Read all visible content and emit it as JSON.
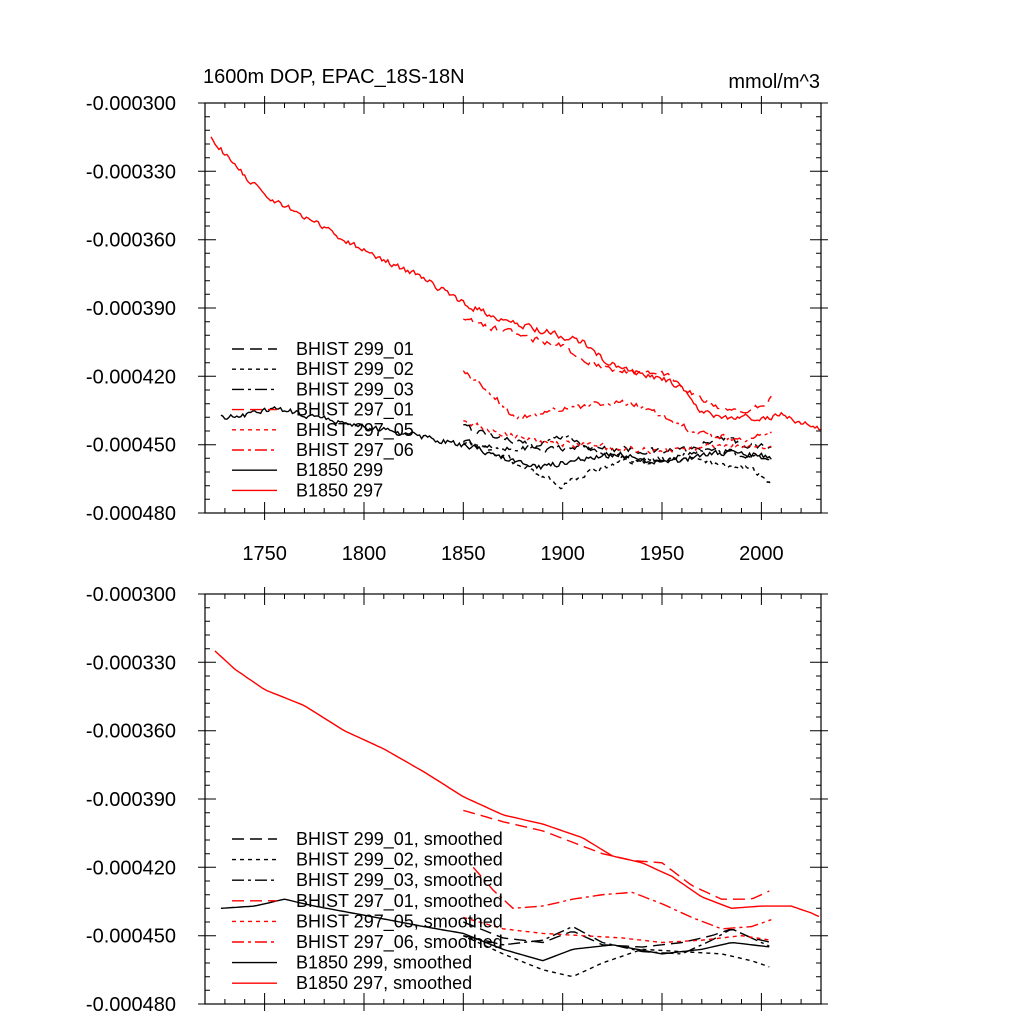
{
  "chart_data": [
    {
      "type": "line",
      "panel": "top",
      "title": "1600m DOP, EPAC_18S-18N",
      "units": "mmol/m^3",
      "xlim": [
        1720,
        2030
      ],
      "ylim": [
        -0.00048,
        -0.0003
      ],
      "xticks": [
        1750,
        1800,
        1850,
        1900,
        1950,
        2000
      ],
      "xtick_labels": [
        "1750",
        "1800",
        "1850",
        "1900",
        "1950",
        "2000"
      ],
      "yticks": [
        -0.0003,
        -0.00033,
        -0.00036,
        -0.00039,
        -0.00042,
        -0.00045,
        -0.00048
      ],
      "ytick_labels": [
        "-0.000300",
        "-0.000330",
        "-0.000360",
        "-0.000390",
        "-0.000420",
        "-0.000450",
        "-0.000480"
      ],
      "legend_position": "left-center",
      "series": [
        {
          "name": "BHIST 299_01",
          "color": "#000000",
          "dash": "dashed",
          "noise": 1.2e-06,
          "points": [
            [
              1850,
              -0.000442
            ],
            [
              1870,
              -0.000447
            ],
            [
              1890,
              -0.000452
            ],
            [
              1910,
              -0.000451
            ],
            [
              1930,
              -0.000452
            ],
            [
              1950,
              -0.000453
            ],
            [
              1965,
              -0.000452
            ],
            [
              1975,
              -0.000449
            ],
            [
              1980,
              -0.000446
            ],
            [
              1990,
              -0.00045
            ],
            [
              2005,
              -0.000451
            ]
          ]
        },
        {
          "name": "BHIST 299_02",
          "color": "#000000",
          "dash": "dotted",
          "noise": 1.2e-06,
          "points": [
            [
              1850,
              -0.000448
            ],
            [
              1870,
              -0.000455
            ],
            [
              1890,
              -0.000464
            ],
            [
              1900,
              -0.000468
            ],
            [
              1910,
              -0.000463
            ],
            [
              1930,
              -0.000458
            ],
            [
              1950,
              -0.000456
            ],
            [
              1970,
              -0.000457
            ],
            [
              1985,
              -0.000459
            ],
            [
              1995,
              -0.000461
            ],
            [
              2005,
              -0.000467
            ]
          ]
        },
        {
          "name": "BHIST 299_03",
          "color": "#000000",
          "dash": "dashdot",
          "noise": 1.2e-06,
          "points": [
            [
              1850,
              -0.000448
            ],
            [
              1870,
              -0.000452
            ],
            [
              1885,
              -0.000451
            ],
            [
              1900,
              -0.000446
            ],
            [
              1915,
              -0.000452
            ],
            [
              1930,
              -0.000456
            ],
            [
              1950,
              -0.000458
            ],
            [
              1970,
              -0.000452
            ],
            [
              1985,
              -0.000453
            ],
            [
              2005,
              -0.000458
            ]
          ]
        },
        {
          "name": "BHIST 297_01",
          "color": "#ff0000",
          "dash": "dashed",
          "noise": 1.2e-06,
          "points": [
            [
              1850,
              -0.000395
            ],
            [
              1870,
              -0.0004
            ],
            [
              1890,
              -0.000405
            ],
            [
              1900,
              -0.000407
            ],
            [
              1915,
              -0.000414
            ],
            [
              1930,
              -0.000418
            ],
            [
              1950,
              -0.000418
            ],
            [
              1965,
              -0.000428
            ],
            [
              1980,
              -0.000434
            ],
            [
              1990,
              -0.000435
            ],
            [
              2000,
              -0.000433
            ],
            [
              2005,
              -0.00043
            ]
          ]
        },
        {
          "name": "BHIST 297_05",
          "color": "#ff0000",
          "dash": "dotted",
          "noise": 1.2e-06,
          "points": [
            [
              1850,
              -0.00044
            ],
            [
              1870,
              -0.000445
            ],
            [
              1890,
              -0.000449
            ],
            [
              1910,
              -0.00045
            ],
            [
              1930,
              -0.000452
            ],
            [
              1950,
              -0.000453
            ],
            [
              1970,
              -0.000451
            ],
            [
              1985,
              -0.00045
            ],
            [
              2005,
              -0.000452
            ]
          ]
        },
        {
          "name": "BHIST 297_06",
          "color": "#ff0000",
          "dash": "dashdot",
          "noise": 1.2e-06,
          "points": [
            [
              1850,
              -0.000418
            ],
            [
              1865,
              -0.000428
            ],
            [
              1875,
              -0.000438
            ],
            [
              1885,
              -0.000437
            ],
            [
              1900,
              -0.000434
            ],
            [
              1920,
              -0.000432
            ],
            [
              1935,
              -0.000432
            ],
            [
              1950,
              -0.000437
            ],
            [
              1965,
              -0.000444
            ],
            [
              1975,
              -0.000446
            ],
            [
              1990,
              -0.000448
            ],
            [
              2005,
              -0.000445
            ]
          ]
        },
        {
          "name": "B1850 299",
          "color": "#000000",
          "dash": "solid",
          "noise": 1.2e-06,
          "points": [
            [
              1728,
              -0.000438
            ],
            [
              1740,
              -0.000437
            ],
            [
              1755,
              -0.000434
            ],
            [
              1770,
              -0.000437
            ],
            [
              1800,
              -0.000442
            ],
            [
              1830,
              -0.000447
            ],
            [
              1850,
              -0.00045
            ],
            [
              1870,
              -0.000456
            ],
            [
              1890,
              -0.00046
            ],
            [
              1910,
              -0.000456
            ],
            [
              1930,
              -0.000454
            ],
            [
              1950,
              -0.000458
            ],
            [
              1970,
              -0.000455
            ],
            [
              1985,
              -0.000453
            ],
            [
              2000,
              -0.000455
            ],
            [
              2005,
              -0.000456
            ]
          ]
        },
        {
          "name": "B1850 297",
          "color": "#ff0000",
          "dash": "solid",
          "noise": 1.2e-06,
          "points": [
            [
              1723,
              -0.000315
            ],
            [
              1735,
              -0.000328
            ],
            [
              1750,
              -0.00034
            ],
            [
              1770,
              -0.00035
            ],
            [
              1790,
              -0.00036
            ],
            [
              1810,
              -0.000369
            ],
            [
              1830,
              -0.000377
            ],
            [
              1850,
              -0.000388
            ],
            [
              1870,
              -0.000395
            ],
            [
              1890,
              -0.0004
            ],
            [
              1910,
              -0.000405
            ],
            [
              1920,
              -0.000412
            ],
            [
              1935,
              -0.000418
            ],
            [
              1950,
              -0.000421
            ],
            [
              1960,
              -0.000425
            ],
            [
              1970,
              -0.000436
            ],
            [
              1985,
              -0.000438
            ],
            [
              2000,
              -0.000438
            ],
            [
              2010,
              -0.000437
            ],
            [
              2020,
              -0.00044
            ],
            [
              2030,
              -0.000443
            ]
          ]
        }
      ]
    },
    {
      "type": "line",
      "panel": "bottom",
      "title": "",
      "units": "",
      "xlim": [
        1720,
        2030
      ],
      "ylim": [
        -0.00048,
        -0.0003
      ],
      "xticks": [
        1750,
        1800,
        1850,
        1900,
        1950,
        2000
      ],
      "xtick_labels": [],
      "yticks": [
        -0.0003,
        -0.00033,
        -0.00036,
        -0.00039,
        -0.00042,
        -0.00045,
        -0.00048
      ],
      "ytick_labels": [
        "-0.000300",
        "-0.000330",
        "-0.000360",
        "-0.000390",
        "-0.000420",
        "-0.000450",
        "-0.000480"
      ],
      "legend_position": "left-center",
      "series": [
        {
          "name": "BHIST 299_01, smoothed",
          "color": "#000000",
          "dash": "dashed",
          "noise": 0,
          "points": [
            [
              1850,
              -0.000444
            ],
            [
              1870,
              -0.000451
            ],
            [
              1890,
              -0.000453
            ],
            [
              1905,
              -0.000448
            ],
            [
              1920,
              -0.000454
            ],
            [
              1940,
              -0.000455
            ],
            [
              1960,
              -0.000453
            ],
            [
              1975,
              -0.00045
            ],
            [
              1985,
              -0.000447
            ],
            [
              1995,
              -0.000451
            ],
            [
              2005,
              -0.000453
            ]
          ]
        },
        {
          "name": "BHIST 299_02, smoothed",
          "color": "#000000",
          "dash": "dotted",
          "noise": 0,
          "points": [
            [
              1850,
              -0.00045
            ],
            [
              1870,
              -0.000458
            ],
            [
              1890,
              -0.000465
            ],
            [
              1905,
              -0.000468
            ],
            [
              1920,
              -0.000462
            ],
            [
              1940,
              -0.000456
            ],
            [
              1960,
              -0.000457
            ],
            [
              1980,
              -0.000458
            ],
            [
              1995,
              -0.000461
            ],
            [
              2005,
              -0.000464
            ]
          ]
        },
        {
          "name": "BHIST 299_03, smoothed",
          "color": "#000000",
          "dash": "dashdot",
          "noise": 0,
          "points": [
            [
              1850,
              -0.00045
            ],
            [
              1870,
              -0.000454
            ],
            [
              1890,
              -0.000452
            ],
            [
              1905,
              -0.000446
            ],
            [
              1920,
              -0.000453
            ],
            [
              1940,
              -0.000457
            ],
            [
              1960,
              -0.000458
            ],
            [
              1975,
              -0.000452
            ],
            [
              1985,
              -0.000447
            ],
            [
              2005,
              -0.000455
            ]
          ]
        },
        {
          "name": "BHIST 297_01, smoothed",
          "color": "#ff0000",
          "dash": "dashed",
          "noise": 0,
          "points": [
            [
              1850,
              -0.000395
            ],
            [
              1870,
              -0.0004
            ],
            [
              1890,
              -0.000404
            ],
            [
              1905,
              -0.000409
            ],
            [
              1920,
              -0.000414
            ],
            [
              1935,
              -0.000417
            ],
            [
              1950,
              -0.000418
            ],
            [
              1965,
              -0.000428
            ],
            [
              1980,
              -0.000434
            ],
            [
              1995,
              -0.000434
            ],
            [
              2005,
              -0.00043
            ]
          ]
        },
        {
          "name": "BHIST 297_05, smoothed",
          "color": "#ff0000",
          "dash": "dotted",
          "noise": 0,
          "points": [
            [
              1850,
              -0.000442
            ],
            [
              1870,
              -0.000447
            ],
            [
              1890,
              -0.000449
            ],
            [
              1910,
              -0.00045
            ],
            [
              1930,
              -0.000451
            ],
            [
              1950,
              -0.000453
            ],
            [
              1970,
              -0.000452
            ],
            [
              1990,
              -0.00045
            ],
            [
              2005,
              -0.000452
            ]
          ]
        },
        {
          "name": "BHIST 297_06, smoothed",
          "color": "#ff0000",
          "dash": "dashdot",
          "noise": 0,
          "points": [
            [
              1855,
              -0.00042
            ],
            [
              1865,
              -0.00043
            ],
            [
              1875,
              -0.000438
            ],
            [
              1890,
              -0.000437
            ],
            [
              1905,
              -0.000434
            ],
            [
              1920,
              -0.000432
            ],
            [
              1935,
              -0.000431
            ],
            [
              1950,
              -0.000436
            ],
            [
              1965,
              -0.000442
            ],
            [
              1980,
              -0.000447
            ],
            [
              1995,
              -0.000446
            ],
            [
              2005,
              -0.000443
            ]
          ]
        },
        {
          "name": "B1850 299, smoothed",
          "color": "#000000",
          "dash": "solid",
          "noise": 0,
          "points": [
            [
              1728,
              -0.000438
            ],
            [
              1745,
              -0.000437
            ],
            [
              1760,
              -0.000434
            ],
            [
              1775,
              -0.000437
            ],
            [
              1800,
              -0.000441
            ],
            [
              1830,
              -0.000446
            ],
            [
              1850,
              -0.000449
            ],
            [
              1870,
              -0.000456
            ],
            [
              1890,
              -0.000461
            ],
            [
              1905,
              -0.000456
            ],
            [
              1925,
              -0.000454
            ],
            [
              1950,
              -0.000458
            ],
            [
              1970,
              -0.000456
            ],
            [
              1985,
              -0.000453
            ],
            [
              2005,
              -0.000455
            ]
          ]
        },
        {
          "name": "B1850 297, smoothed",
          "color": "#ff0000",
          "dash": "solid",
          "noise": 0,
          "points": [
            [
              1725,
              -0.000325
            ],
            [
              1735,
              -0.000333
            ],
            [
              1750,
              -0.000342
            ],
            [
              1770,
              -0.000349
            ],
            [
              1790,
              -0.00036
            ],
            [
              1810,
              -0.000368
            ],
            [
              1830,
              -0.000378
            ],
            [
              1850,
              -0.000389
            ],
            [
              1870,
              -0.000397
            ],
            [
              1890,
              -0.000401
            ],
            [
              1910,
              -0.000407
            ],
            [
              1925,
              -0.000415
            ],
            [
              1940,
              -0.000418
            ],
            [
              1955,
              -0.000424
            ],
            [
              1970,
              -0.000433
            ],
            [
              1985,
              -0.000438
            ],
            [
              2000,
              -0.000437
            ],
            [
              2015,
              -0.000437
            ],
            [
              2025,
              -0.00044
            ],
            [
              2030,
              -0.000442
            ]
          ]
        }
      ]
    }
  ]
}
